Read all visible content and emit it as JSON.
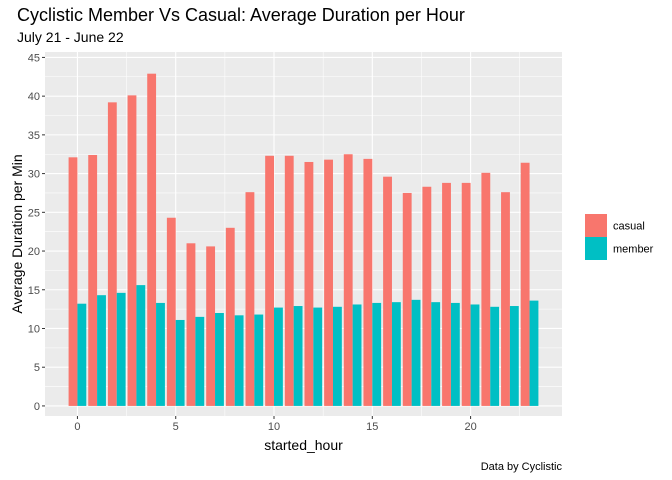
{
  "chart_data": {
    "type": "bar",
    "title": "Cyclistic Member Vs Casual: Average Duration per Hour",
    "subtitle": "July 21 - June 22",
    "xlabel": "started_hour",
    "ylabel": "Average Duration per Min",
    "caption": "Data by Cyclistic",
    "x": [
      0,
      1,
      2,
      3,
      4,
      5,
      6,
      7,
      8,
      9,
      10,
      11,
      12,
      13,
      14,
      15,
      16,
      17,
      18,
      19,
      20,
      21,
      22,
      23
    ],
    "xlim": [
      -1.65,
      24.65
    ],
    "ylim": [
      -1.3,
      45.7
    ],
    "x_ticks": [
      0,
      5,
      10,
      15,
      20
    ],
    "y_ticks": [
      0,
      5,
      10,
      15,
      20,
      25,
      30,
      35,
      40,
      45
    ],
    "grid": true,
    "legend_position": "right",
    "series": [
      {
        "name": "casual",
        "color": "#F8766D",
        "values": [
          32.1,
          32.4,
          39.2,
          40.1,
          42.9,
          24.3,
          21.0,
          20.6,
          23.0,
          27.6,
          32.3,
          32.3,
          31.5,
          31.8,
          32.5,
          31.9,
          29.6,
          27.5,
          28.3,
          28.8,
          28.8,
          30.1,
          27.6,
          31.4
        ]
      },
      {
        "name": "member",
        "color": "#00BFC4",
        "values": [
          13.2,
          14.3,
          14.6,
          15.6,
          13.3,
          11.1,
          11.5,
          12.0,
          11.7,
          11.8,
          12.7,
          12.9,
          12.7,
          12.8,
          13.1,
          13.3,
          13.4,
          13.7,
          13.4,
          13.3,
          13.1,
          12.8,
          12.9,
          13.6
        ]
      }
    ]
  }
}
